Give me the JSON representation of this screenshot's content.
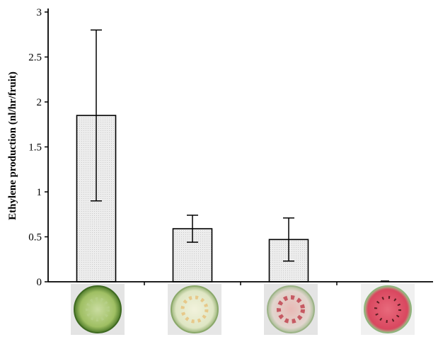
{
  "chart_data": {
    "type": "bar",
    "title": "",
    "xlabel": "",
    "ylabel": "Ethylene production (nl/hr/fruit)",
    "ylim": [
      0,
      3
    ],
    "yticks": [
      0,
      0.5,
      1,
      1.5,
      2,
      2.5,
      3
    ],
    "ytick_labels": [
      "0",
      "0.5",
      "1",
      "1.5",
      "2",
      "2.5",
      "3"
    ],
    "categories": [
      "",
      "",
      "",
      ""
    ],
    "category_images": [
      "green-fruit-slice",
      "white-yellow-fruit-slice",
      "pink-fruit-slice",
      "red-fruit-slice"
    ],
    "values": [
      1.85,
      0.59,
      0.47,
      0.0
    ],
    "errors": [
      0.95,
      0.15,
      0.24,
      0.0
    ],
    "grid": false,
    "legend": "none",
    "colors": {
      "bar_fill": "#ececec",
      "axis": "#000000",
      "fruit_green": "#6f9a3e",
      "fruit_pale": "#dfe6c4",
      "fruit_pink": "#c97a7a",
      "fruit_red": "#d9475f"
    }
  }
}
